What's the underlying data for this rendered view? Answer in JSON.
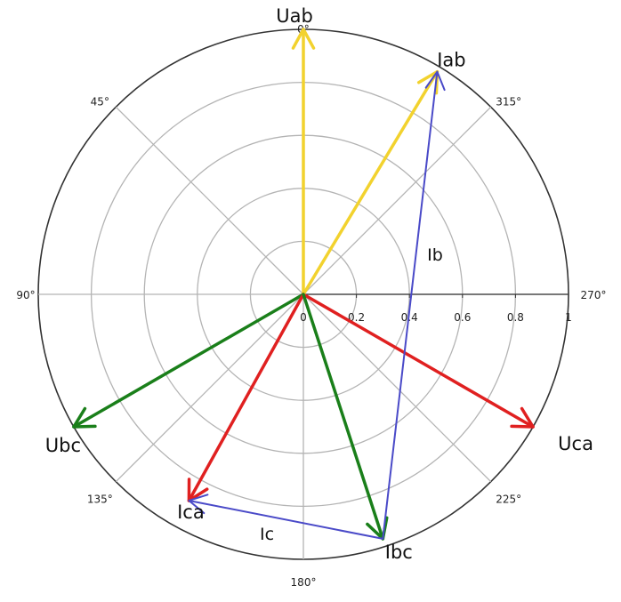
{
  "chart_data": {
    "type": "polar-phasor",
    "angle_direction": "counterclockwise",
    "zero_angle_position": "top",
    "radial_ticks": [
      "0",
      "0.2",
      "0.4",
      "0.6",
      "0.8",
      "1"
    ],
    "radial_tick_values": [
      0,
      0.2,
      0.4,
      0.6,
      0.8,
      1
    ],
    "rlim": [
      0,
      1
    ],
    "angle_ticks": [
      {
        "angle": 0,
        "label": "0°"
      },
      {
        "angle": 45,
        "label": "45°"
      },
      {
        "angle": 90,
        "label": "90°"
      },
      {
        "angle": 135,
        "label": "135°"
      },
      {
        "angle": 180,
        "label": "180°"
      },
      {
        "angle": 225,
        "label": "225°"
      },
      {
        "angle": 270,
        "label": "270°"
      },
      {
        "angle": 315,
        "label": "315°"
      }
    ],
    "grid": true,
    "colors": {
      "yellow": "#f2d22e",
      "red": "#e02020",
      "green": "#1a7f1a",
      "blue": "#4a4ac8",
      "grid": "#b4b4b4",
      "outer": "#333333"
    },
    "phasors": [
      {
        "label": "Uab",
        "angle": 0,
        "magnitude": 1.0,
        "color": "#f2d22e"
      },
      {
        "label": "Uca",
        "angle": 240,
        "magnitude": 1.0,
        "color": "#e02020"
      },
      {
        "label": "Ubc",
        "angle": 120,
        "magnitude": 1.0,
        "color": "#1a7f1a"
      },
      {
        "label": "Iab",
        "angle": 329,
        "magnitude": 0.98,
        "color": "#f2d22e"
      },
      {
        "label": "Ica",
        "angle": 151,
        "magnitude": 0.89,
        "color": "#e02020"
      },
      {
        "label": "Ibc",
        "angle": 198,
        "magnitude": 0.97,
        "color": "#1a7f1a"
      }
    ],
    "line_currents": [
      {
        "label": "Ib",
        "from": "Ibc",
        "to": "Iab",
        "color": "#4a4ac8"
      },
      {
        "label": "Ic",
        "from": "Ibc",
        "to": "Ica",
        "color": "#4a4ac8"
      }
    ]
  }
}
